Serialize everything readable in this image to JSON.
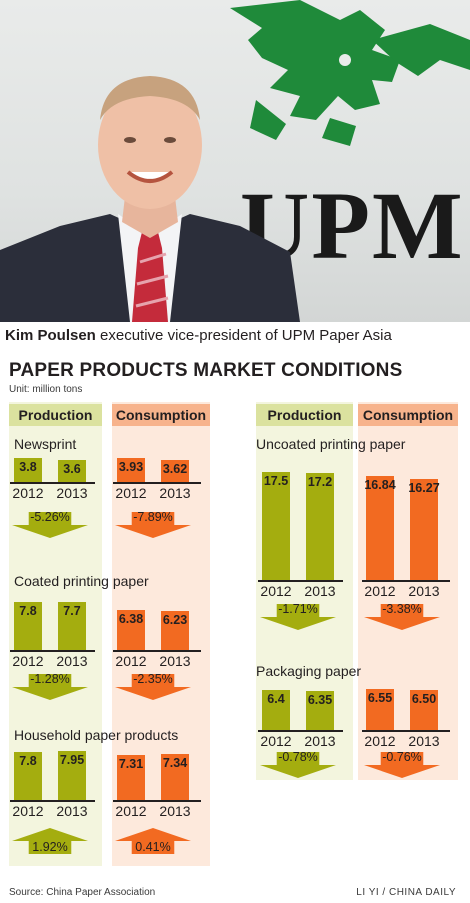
{
  "photo": {
    "logo_text": "UPM"
  },
  "caption": {
    "name": "Kim Poulsen",
    "role": " executive vice-president of UPM Paper Asia"
  },
  "title": "PAPER PRODUCTS MARKET CONDITIONS",
  "unit": "Unit: million tons",
  "source": "Source:  China Paper Association",
  "credit": "LI YI / CHINA DAILY",
  "colors": {
    "production": "#a4ad0f",
    "consumption": "#f26a21",
    "production_header": "#dbe29f",
    "consumption_header": "#f7b38c"
  },
  "chart_data": {
    "type": "bar",
    "unit": "million tons",
    "categories": [
      "2012",
      "2013"
    ],
    "column_headers": [
      "Production",
      "Consumption"
    ],
    "groups": [
      {
        "name": "Newsprint",
        "production": {
          "values": [
            3.8,
            3.6
          ],
          "labels": [
            "3.8",
            "3.6"
          ],
          "change": "-5.26%",
          "direction": "down"
        },
        "consumption": {
          "values": [
            3.93,
            3.62
          ],
          "labels": [
            "3.93",
            "3.62"
          ],
          "change": "-7.89%",
          "direction": "down"
        }
      },
      {
        "name": "Coated printing paper",
        "production": {
          "values": [
            7.8,
            7.7
          ],
          "labels": [
            "7.8",
            "7.7"
          ],
          "change": "-1.28%",
          "direction": "down"
        },
        "consumption": {
          "values": [
            6.38,
            6.23
          ],
          "labels": [
            "6.38",
            "6.23"
          ],
          "change": "-2.35%",
          "direction": "down"
        }
      },
      {
        "name": "Household paper products",
        "production": {
          "values": [
            7.8,
            7.95
          ],
          "labels": [
            "7.8",
            "7.95"
          ],
          "change": "1.92%",
          "direction": "up"
        },
        "consumption": {
          "values": [
            7.31,
            7.34
          ],
          "labels": [
            "7.31",
            "7.34"
          ],
          "change": "0.41%",
          "direction": "up"
        }
      },
      {
        "name": "Uncoated printing paper",
        "production": {
          "values": [
            17.5,
            17.2
          ],
          "labels": [
            "17.5",
            "17.2"
          ],
          "change": "-1.71%",
          "direction": "down"
        },
        "consumption": {
          "values": [
            16.84,
            16.27
          ],
          "labels": [
            "16.84",
            "16.27"
          ],
          "change": "-3.38%",
          "direction": "down"
        }
      },
      {
        "name": "Packaging paper",
        "production": {
          "values": [
            6.4,
            6.35
          ],
          "labels": [
            "6.4",
            "6.35"
          ],
          "change": "-0.78%",
          "direction": "down"
        },
        "consumption": {
          "values": [
            6.55,
            6.5
          ],
          "labels": [
            "6.55",
            "6.50"
          ],
          "change": "-0.76%",
          "direction": "down"
        }
      }
    ]
  }
}
